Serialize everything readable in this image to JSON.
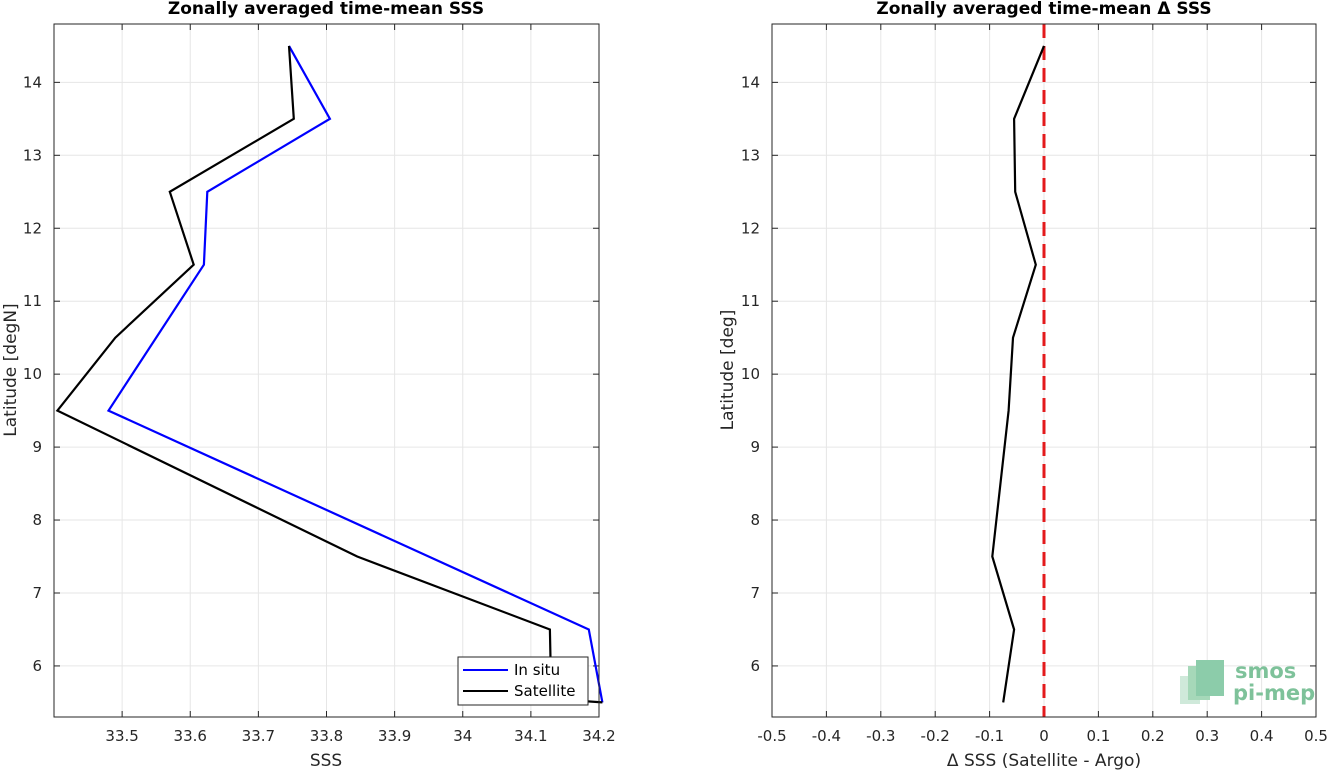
{
  "chart_data": [
    {
      "type": "line",
      "title": "Zonally averaged time-mean SSS",
      "xlabel": "SSS",
      "ylabel": "Latitude [degN]",
      "xlim": [
        33.4,
        34.2
      ],
      "ylim": [
        5.3,
        14.8
      ],
      "xticks": [
        "33.5",
        "33.6",
        "33.7",
        "33.8",
        "33.9",
        "34",
        "34.1",
        "34.2"
      ],
      "xtick_values": [
        33.5,
        33.6,
        33.7,
        33.8,
        33.9,
        34.0,
        34.1,
        34.2
      ],
      "yticks": [
        "6",
        "7",
        "8",
        "9",
        "10",
        "11",
        "12",
        "13",
        "14"
      ],
      "ytick_values": [
        6,
        7,
        8,
        9,
        10,
        11,
        12,
        13,
        14
      ],
      "grid": true,
      "legend_position": "bottom-right",
      "series": [
        {
          "name": "In situ",
          "color": "#0000ff",
          "x": [
            34.205,
            34.185,
            33.48,
            33.62,
            33.625,
            33.805,
            33.745
          ],
          "y": [
            5.5,
            6.5,
            9.5,
            11.5,
            12.5,
            13.5,
            14.5
          ]
        },
        {
          "name": "Satellite",
          "color": "#000000",
          "x": [
            34.205,
            34.13,
            34.128,
            33.845,
            33.405,
            33.49,
            33.605,
            33.57,
            33.752,
            33.745
          ],
          "y": [
            5.5,
            5.55,
            6.5,
            7.5,
            9.5,
            10.5,
            11.5,
            12.5,
            13.5,
            14.5
          ]
        }
      ]
    },
    {
      "type": "line",
      "title": "Zonally averaged time-mean Δ SSS",
      "xlabel": "Δ SSS (Satellite - Argo)",
      "ylabel": "Latitude [deg]",
      "xlim": [
        -0.5,
        0.5
      ],
      "ylim": [
        5.3,
        14.8
      ],
      "xticks": [
        "-0.5",
        "-0.4",
        "-0.3",
        "-0.2",
        "-0.1",
        "0",
        "0.1",
        "0.2",
        "0.3",
        "0.4",
        "0.5"
      ],
      "xtick_values": [
        -0.5,
        -0.4,
        -0.3,
        -0.2,
        -0.1,
        0,
        0.1,
        0.2,
        0.3,
        0.4,
        0.5
      ],
      "yticks": [
        "6",
        "7",
        "8",
        "9",
        "10",
        "11",
        "12",
        "13",
        "14"
      ],
      "ytick_values": [
        6,
        7,
        8,
        9,
        10,
        11,
        12,
        13,
        14
      ],
      "grid": true,
      "reference_line": {
        "x": 0,
        "color": "#e31a1c",
        "style": "dashed"
      },
      "series": [
        {
          "color": "#000000",
          "x": [
            -0.075,
            -0.055,
            -0.095,
            -0.065,
            -0.057,
            -0.015,
            -0.053,
            -0.055,
            0.0
          ],
          "y": [
            5.5,
            6.5,
            7.5,
            9.5,
            10.5,
            11.5,
            12.5,
            13.5,
            14.5
          ]
        }
      ]
    }
  ],
  "logo": {
    "line1": "smos",
    "line2": "pi-mep"
  }
}
